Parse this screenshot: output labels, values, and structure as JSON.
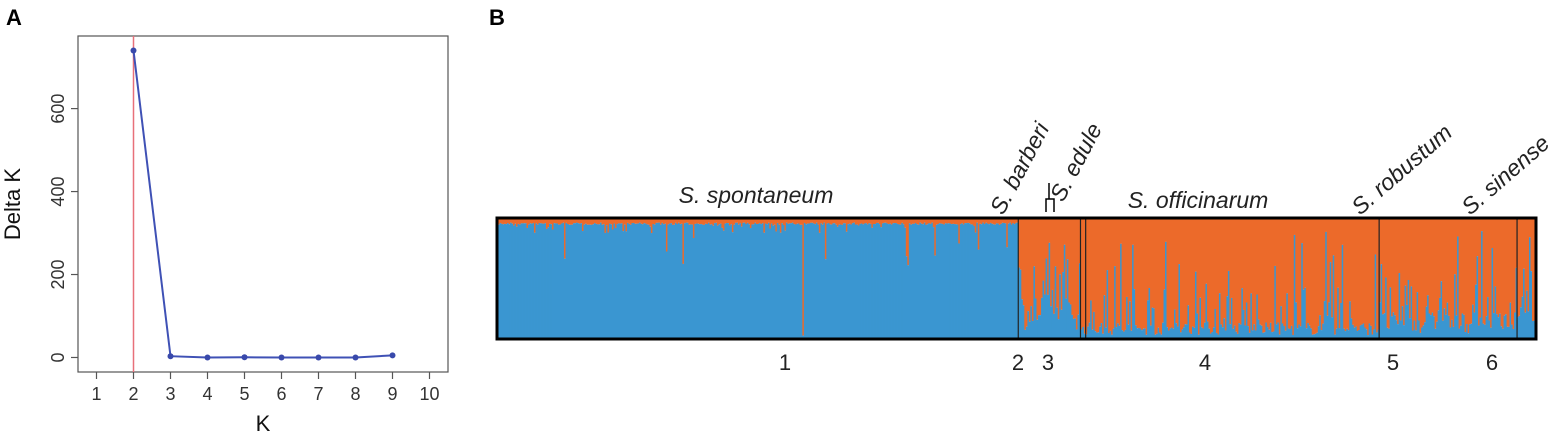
{
  "panel_a_label": "A",
  "panel_b_label": "B",
  "colors": {
    "line": "#3f51b5",
    "marker": "#3949ab",
    "ref_line": "#e8707a",
    "cluster_blue": "#3a96d1",
    "cluster_orange": "#ec6a2a",
    "frame": "#000000"
  },
  "chart_data": [
    {
      "type": "line",
      "xlabel": "K",
      "ylabel": "Delta K",
      "x": [
        2,
        3,
        4,
        5,
        6,
        7,
        8,
        9
      ],
      "y": [
        740,
        3,
        0,
        0.5,
        0,
        0,
        0,
        5
      ],
      "xticks": [
        "1",
        "2",
        "3",
        "4",
        "5",
        "6",
        "7",
        "8",
        "9",
        "10"
      ],
      "yticks": [
        "0",
        "200",
        "400",
        "600"
      ],
      "xlim": [
        0.5,
        10.5
      ],
      "ylim": [
        -35,
        775
      ],
      "reference_line_x": 2,
      "grid": false
    },
    {
      "type": "bar",
      "layout": "stacked-100-percent",
      "series_colors": [
        "#3a96d1",
        "#ec6a2a"
      ],
      "groups": [
        {
          "label": "S. spontaneum",
          "cluster": "1",
          "start": 0,
          "end": 0.5017,
          "blue_fraction": 0.95
        },
        {
          "label": "S. barberi",
          "cluster": "2",
          "start": 0.5017,
          "end": 0.5617,
          "blue_fraction": 0.34
        },
        {
          "label": "S. edule",
          "cluster": "3",
          "start": 0.5617,
          "end": 0.5667,
          "blue_fraction": 0.12
        },
        {
          "label": "S. officinarum",
          "cluster": "4",
          "start": 0.5667,
          "end": 0.8497,
          "blue_fraction": 0.12
        },
        {
          "label": "S. robustum",
          "cluster": "5",
          "start": 0.8497,
          "end": 0.9827,
          "blue_fraction": 0.2
        },
        {
          "label": "S. sinense",
          "cluster": "6",
          "start": 0.9827,
          "end": 1,
          "blue_fraction": 0.25
        }
      ]
    }
  ]
}
